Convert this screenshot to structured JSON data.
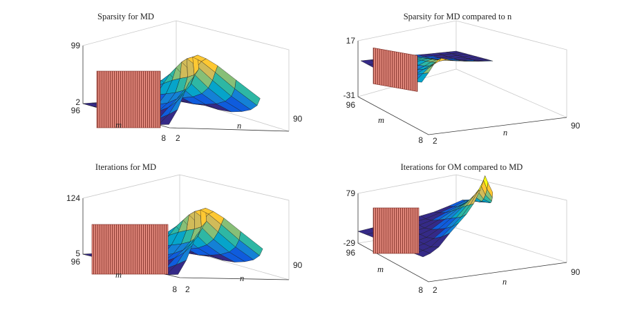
{
  "chart_data": [
    {
      "type": "surface3d",
      "title": "Sparsity for MD",
      "xlabel": "n",
      "ylabel": "m",
      "n_ticks": [
        "2",
        "90"
      ],
      "m_ticks": [
        "96",
        "8"
      ],
      "z_ticks": [
        "99",
        "2"
      ],
      "zlim": [
        2,
        99
      ],
      "n_range": [
        2,
        90
      ],
      "m_range": [
        8,
        96
      ],
      "peak": 99,
      "colormap": "parula",
      "wall": "red hatched plane"
    },
    {
      "type": "surface3d",
      "title": "Sparsity for MD compared to n",
      "xlabel": "n",
      "ylabel": "m",
      "n_ticks": [
        "2",
        "90"
      ],
      "m_ticks": [
        "96",
        "8"
      ],
      "z_ticks": [
        "17",
        "-31"
      ],
      "zlim": [
        -31,
        17
      ],
      "n_range": [
        2,
        90
      ],
      "m_range": [
        8,
        96
      ],
      "peak": 17,
      "colormap": "parula",
      "wall": "red hatched plane"
    },
    {
      "type": "surface3d",
      "title": "Iterations for MD",
      "xlabel": "n",
      "ylabel": "m",
      "n_ticks": [
        "2",
        "90"
      ],
      "m_ticks": [
        "96",
        "8"
      ],
      "z_ticks": [
        "124",
        "5"
      ],
      "zlim": [
        5,
        124
      ],
      "n_range": [
        2,
        90
      ],
      "m_range": [
        8,
        96
      ],
      "peak": 124,
      "colormap": "parula",
      "wall": "red hatched plane"
    },
    {
      "type": "surface3d",
      "title": "Iterations for OM compared to MD",
      "xlabel": "n",
      "ylabel": "m",
      "n_ticks": [
        "2",
        "90"
      ],
      "m_ticks": [
        "96",
        "8"
      ],
      "z_ticks": [
        "79",
        "-29"
      ],
      "zlim": [
        -29,
        79
      ],
      "n_range": [
        2,
        90
      ],
      "m_range": [
        8,
        96
      ],
      "peak": 79,
      "colormap": "parula",
      "wall": "red hatched plane"
    }
  ],
  "colors": {
    "wall_fill": "#e0867a",
    "wall_hatch": "#7a2a22",
    "box_line": "#c8c8c8",
    "floor": "#3b3bc4"
  }
}
